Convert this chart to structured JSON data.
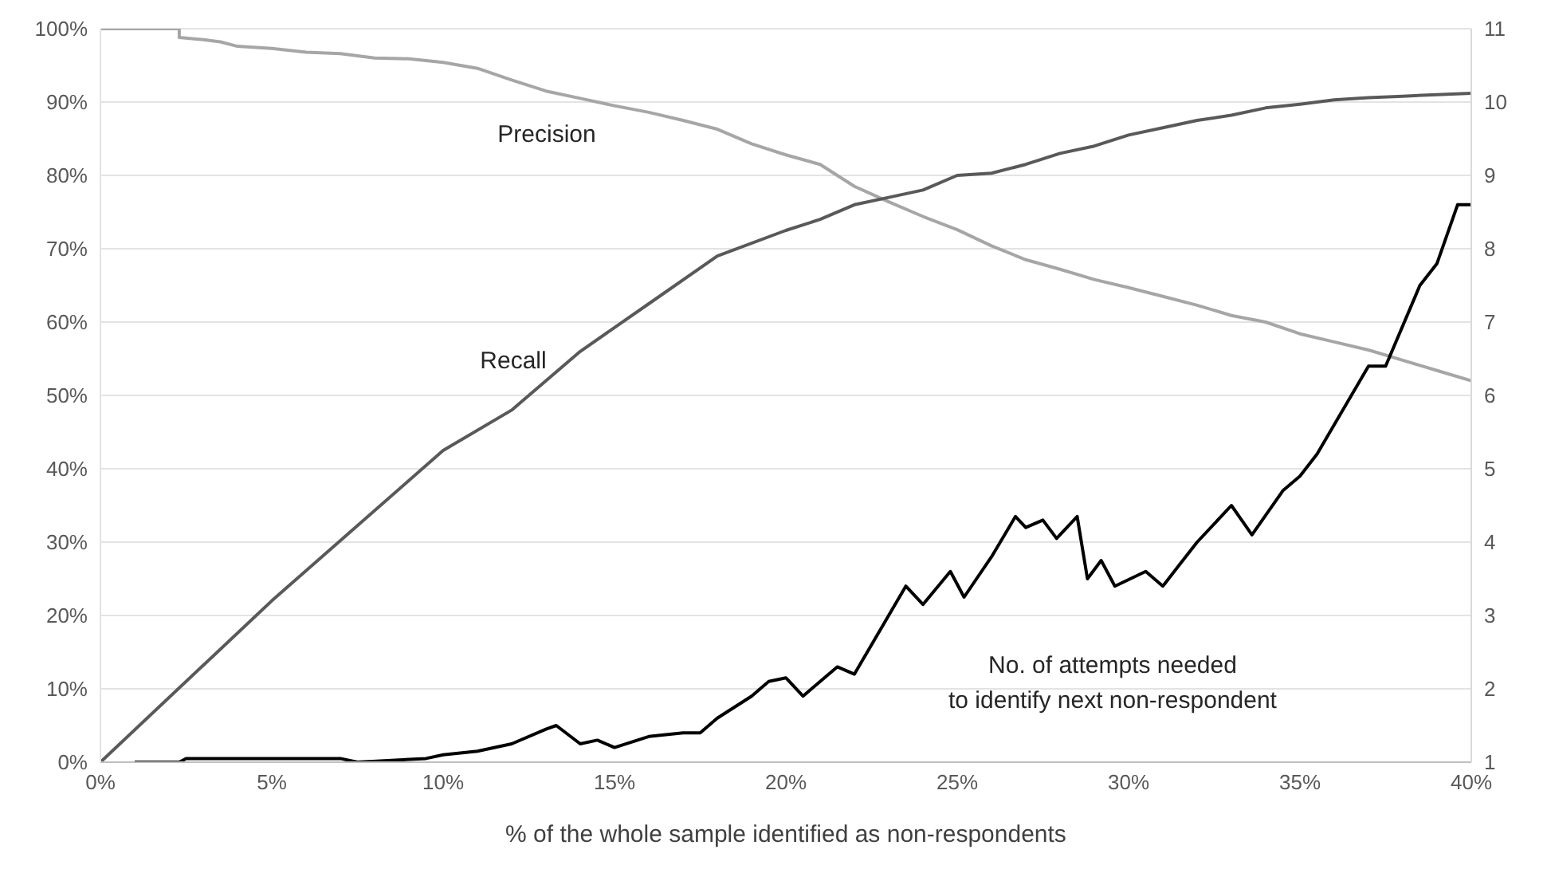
{
  "chart_data": {
    "type": "line",
    "xlabel": "% of the whole sample identified as non-respondents",
    "xlim": [
      0,
      40
    ],
    "xticks": [
      {
        "value": 0,
        "label": "0%"
      },
      {
        "value": 5,
        "label": "5%"
      },
      {
        "value": 10,
        "label": "10%"
      },
      {
        "value": 15,
        "label": "15%"
      },
      {
        "value": 20,
        "label": "20%"
      },
      {
        "value": 25,
        "label": "25%"
      },
      {
        "value": 30,
        "label": "30%"
      },
      {
        "value": 35,
        "label": "35%"
      },
      {
        "value": 40,
        "label": "40%"
      }
    ],
    "ylim": [
      0,
      100
    ],
    "yticks": [
      {
        "value": 0,
        "label": "0%"
      },
      {
        "value": 10,
        "label": "10%"
      },
      {
        "value": 20,
        "label": "20%"
      },
      {
        "value": 30,
        "label": "30%"
      },
      {
        "value": 40,
        "label": "40%"
      },
      {
        "value": 50,
        "label": "50%"
      },
      {
        "value": 60,
        "label": "60%"
      },
      {
        "value": 70,
        "label": "70%"
      },
      {
        "value": 80,
        "label": "80%"
      },
      {
        "value": 90,
        "label": "90%"
      },
      {
        "value": 100,
        "label": "100%"
      }
    ],
    "y2lim": [
      1,
      11
    ],
    "y2ticks": [
      1,
      2,
      3,
      4,
      5,
      6,
      7,
      8,
      9,
      10,
      11
    ],
    "grid": "y",
    "marker": "none",
    "line_style": "solid",
    "series": [
      {
        "name": "Precision",
        "color": "#a6a6a6",
        "x": [
          0,
          2.3,
          2.3,
          3,
          3.5,
          4,
          5,
          6,
          7,
          8,
          9,
          10,
          11,
          12,
          13,
          14,
          15,
          16,
          17,
          18,
          19,
          20,
          21,
          22,
          23,
          24,
          25,
          26,
          27,
          28,
          29,
          30,
          31,
          32,
          33,
          34,
          35,
          36,
          37,
          38,
          39,
          40
        ],
        "values": [
          100,
          100,
          98.8,
          98.5,
          98.2,
          97.6,
          97.3,
          96.8,
          96.6,
          96.0,
          95.9,
          95.4,
          94.6,
          93.0,
          91.5,
          90.5,
          89.5,
          88.6,
          87.5,
          86.3,
          84.3,
          82.8,
          81.5,
          78.5,
          76.4,
          74.4,
          72.6,
          70.4,
          68.5,
          67.2,
          65.8,
          64.7,
          63.5,
          62.3,
          60.9,
          60.0,
          58.4,
          57.3,
          56.2,
          54.8,
          53.4,
          52.0
        ]
      },
      {
        "name": "Recall",
        "color": "#595959",
        "x": [
          0,
          5,
          10,
          12,
          14,
          16,
          18,
          20,
          21,
          22,
          23,
          24,
          25,
          26,
          27,
          28,
          29,
          30,
          31,
          32,
          33,
          34,
          35,
          36,
          37,
          38,
          39,
          40
        ],
        "values": [
          0,
          22,
          42.5,
          48,
          56,
          62.5,
          69,
          72.5,
          74,
          76,
          77,
          78,
          80,
          80.3,
          81.5,
          83,
          84,
          85.5,
          86.5,
          87.5,
          88.2,
          89.2,
          89.7,
          90.3,
          90.6,
          90.8,
          91,
          91.2
        ]
      },
      {
        "name": "No. of attempts needed\nto identify next non-respondent",
        "color": "#000000",
        "axis": "y2",
        "x": [
          1,
          2.3,
          2.5,
          5,
          7,
          7.5,
          9.5,
          10,
          11,
          12,
          13,
          13.3,
          14,
          14.5,
          15,
          16,
          17,
          17.5,
          18,
          19,
          19.5,
          20,
          20.5,
          21.5,
          22,
          23,
          23.5,
          24,
          24.8,
          25.2,
          26,
          26.7,
          27,
          27.5,
          27.9,
          28.5,
          28.8,
          29.2,
          29.6,
          30.5,
          31,
          31.5,
          32,
          33,
          33.3,
          33.6,
          34.5,
          35,
          35.5,
          36,
          37,
          37.5,
          38.5,
          39,
          39.6,
          40
        ],
        "values": [
          1.0,
          1.0,
          1.05,
          1.05,
          1.05,
          1.0,
          1.05,
          1.1,
          1.15,
          1.25,
          1.45,
          1.5,
          1.25,
          1.3,
          1.2,
          1.35,
          1.4,
          1.4,
          1.6,
          1.9,
          2.1,
          2.15,
          1.9,
          2.3,
          2.2,
          3.0,
          3.4,
          3.15,
          3.6,
          3.25,
          3.8,
          4.35,
          4.2,
          4.3,
          4.05,
          4.35,
          3.5,
          3.75,
          3.4,
          3.6,
          3.4,
          3.7,
          4.0,
          4.5,
          4.3,
          4.1,
          4.7,
          4.9,
          5.2,
          5.6,
          6.4,
          6.4,
          7.5,
          7.8,
          8.6,
          8.6
        ]
      }
    ]
  }
}
